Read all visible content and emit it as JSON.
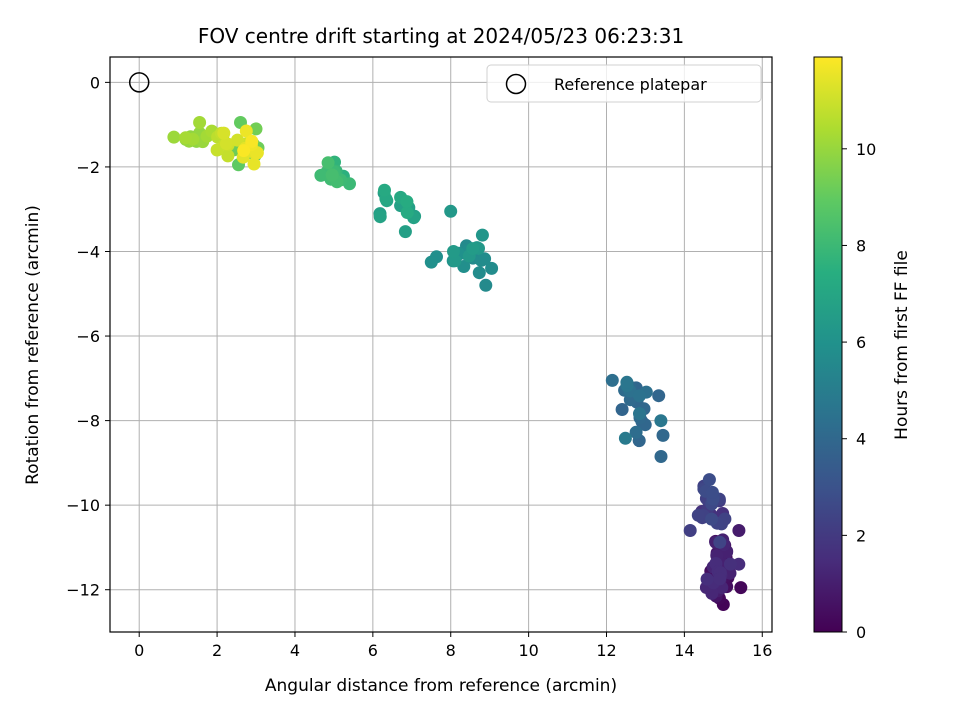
{
  "chart_data": {
    "type": "scatter",
    "title": "FOV centre drift starting at 2024/05/23 06:23:31",
    "xlabel": "Angular distance from reference (arcmin)",
    "ylabel": "Rotation from reference (arcmin)",
    "xlim": [
      -0.75,
      16.25
    ],
    "ylim": [
      -13,
      0.6
    ],
    "xticks": [
      0,
      2,
      4,
      6,
      8,
      10,
      12,
      14,
      16
    ],
    "yticks": [
      0,
      -2,
      -4,
      -6,
      -8,
      -10,
      -12
    ],
    "xtick_labels": [
      "0",
      "2",
      "4",
      "6",
      "8",
      "10",
      "12",
      "14",
      "16"
    ],
    "ytick_labels": [
      "0",
      "−2",
      "−4",
      "−6",
      "−8",
      "−10",
      "−12"
    ],
    "grid": true,
    "legend": {
      "position": "top-right",
      "entries": [
        "Reference platepar"
      ]
    },
    "reference_point": {
      "x": 0,
      "y": 0
    },
    "colorbar": {
      "label": "Hours from first FF file",
      "colormap": "viridis",
      "range": [
        0,
        11.9
      ],
      "ticks": [
        0,
        2,
        4,
        6,
        8,
        10
      ],
      "tick_labels": [
        "0",
        "2",
        "4",
        "6",
        "8",
        "10"
      ]
    },
    "clusters": [
      {
        "cx": 14.9,
        "cy": -11.4,
        "sx": 0.22,
        "sy": 0.45,
        "n": 45,
        "h0": 0.0,
        "h1": 1.6
      },
      {
        "cx": 14.7,
        "cy": -10.2,
        "sx": 0.3,
        "sy": 0.45,
        "n": 22,
        "h0": 1.6,
        "h1": 2.8
      },
      {
        "cx": 12.75,
        "cy": -7.95,
        "sx": 0.38,
        "sy": 0.55,
        "n": 20,
        "h0": 3.8,
        "h1": 4.9
      },
      {
        "cx": 8.5,
        "cy": -4.15,
        "sx": 0.4,
        "sy": 0.35,
        "n": 20,
        "h0": 5.6,
        "h1": 6.5
      },
      {
        "cx": 6.6,
        "cy": -3.0,
        "sx": 0.35,
        "sy": 0.3,
        "n": 12,
        "h0": 6.6,
        "h1": 7.3
      },
      {
        "cx": 5.05,
        "cy": -2.15,
        "sx": 0.22,
        "sy": 0.15,
        "n": 14,
        "h0": 7.5,
        "h1": 8.3
      },
      {
        "cx": 2.8,
        "cy": -1.6,
        "sx": 0.22,
        "sy": 0.25,
        "n": 8,
        "h0": 8.8,
        "h1": 9.4
      },
      {
        "cx": 1.5,
        "cy": -1.3,
        "sx": 0.3,
        "sy": 0.18,
        "n": 12,
        "h0": 9.6,
        "h1": 10.4
      },
      {
        "cx": 2.4,
        "cy": -1.35,
        "sx": 0.3,
        "sy": 0.16,
        "n": 10,
        "h0": 10.6,
        "h1": 11.2
      },
      {
        "cx": 2.9,
        "cy": -1.7,
        "sx": 0.16,
        "sy": 0.25,
        "n": 10,
        "h0": 11.2,
        "h1": 11.9
      }
    ],
    "points": [
      {
        "x": 15.4,
        "y": -10.6,
        "h": 0.9
      },
      {
        "x": 15.45,
        "y": -11.95,
        "h": 0.2
      },
      {
        "x": 15.0,
        "y": -12.35,
        "h": 0.1
      },
      {
        "x": 14.9,
        "y": -12.2,
        "h": 0.2
      },
      {
        "x": 14.5,
        "y": -9.55,
        "h": 2.3
      },
      {
        "x": 14.9,
        "y": -9.9,
        "h": 2.0
      },
      {
        "x": 14.15,
        "y": -10.6,
        "h": 2.2
      },
      {
        "x": 12.15,
        "y": -7.05,
        "h": 4.3
      },
      {
        "x": 13.4,
        "y": -8.85,
        "h": 4.0
      },
      {
        "x": 13.45,
        "y": -8.35,
        "h": 4.0
      },
      {
        "x": 12.6,
        "y": -7.3,
        "h": 4.4
      },
      {
        "x": 8.0,
        "y": -3.05,
        "h": 6.3
      },
      {
        "x": 7.5,
        "y": -4.25,
        "h": 5.9
      },
      {
        "x": 8.9,
        "y": -4.8,
        "h": 5.6
      },
      {
        "x": 9.05,
        "y": -4.4,
        "h": 5.7
      },
      {
        "x": 6.3,
        "y": -2.55,
        "h": 7.2
      },
      {
        "x": 7.05,
        "y": -3.2,
        "h": 6.8
      },
      {
        "x": 4.85,
        "y": -1.9,
        "h": 8.3
      },
      {
        "x": 5.4,
        "y": -2.4,
        "h": 8.0
      },
      {
        "x": 1.2,
        "y": -1.35,
        "h": 9.9
      },
      {
        "x": 1.55,
        "y": -0.95,
        "h": 10.2
      },
      {
        "x": 2.6,
        "y": -0.95,
        "h": 9.0
      },
      {
        "x": 2.55,
        "y": -1.95,
        "h": 8.9
      },
      {
        "x": 3.0,
        "y": -1.1,
        "h": 9.3
      },
      {
        "x": 3.05,
        "y": -1.55,
        "h": 9.2
      },
      {
        "x": 2.75,
        "y": -1.15,
        "h": 11.6
      },
      {
        "x": 2.0,
        "y": -1.6,
        "h": 10.9
      }
    ]
  }
}
